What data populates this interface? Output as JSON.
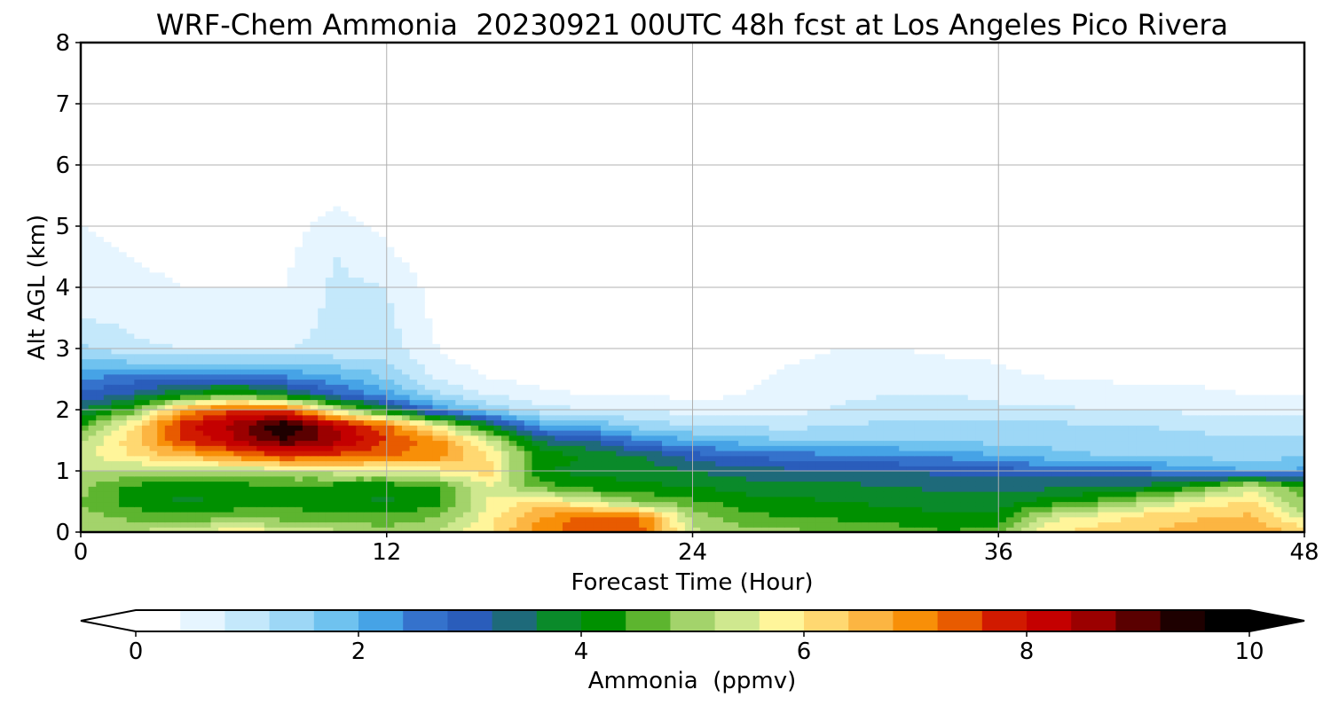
{
  "chart_data": {
    "type": "heatmap",
    "title": "WRF-Chem Ammonia  20230921 00UTC 48h fcst at Los Angeles Pico Rivera",
    "xlabel": "Forecast Time (Hour)",
    "ylabel": "Alt AGL (km)",
    "xlim": [
      0,
      48
    ],
    "ylim": [
      0,
      8
    ],
    "xticks": [
      0,
      12,
      24,
      36,
      48
    ],
    "yticks": [
      0,
      1,
      2,
      3,
      4,
      5,
      6,
      7,
      8
    ],
    "grid": true,
    "colorbar": {
      "label": "Ammonia  (ppmv)",
      "range": [
        0,
        10
      ],
      "ticks": [
        0,
        2,
        4,
        6,
        8,
        10
      ],
      "extend": "both",
      "orientation": "horizontal",
      "placement": "bottom",
      "colors": [
        "#ffffff",
        "#e6f5ff",
        "#c4e8fb",
        "#9dd7f6",
        "#6fc2ef",
        "#46a3e6",
        "#3572cc",
        "#2a5dbb",
        "#1e6a7a",
        "#0a8a2a",
        "#009000",
        "#5db52f",
        "#a3d36b",
        "#cfe88f",
        "#fff59a",
        "#ffd871",
        "#fcb542",
        "#f88f08",
        "#e85b00",
        "#d11a00",
        "#c40000",
        "#9b0000",
        "#5a0000",
        "#1e0000",
        "#000000"
      ]
    },
    "x_hours": [
      0,
      2,
      4,
      6,
      8,
      10,
      12,
      14,
      16,
      18,
      20,
      22,
      24,
      26,
      28,
      30,
      32,
      34,
      36,
      38,
      40,
      42,
      44,
      46,
      48
    ],
    "y_km": [
      0,
      0.25,
      0.5,
      0.75,
      1,
      1.25,
      1.5,
      1.75,
      2,
      2.25,
      2.5,
      2.75,
      3,
      3.5,
      4,
      4.5,
      5,
      5.5,
      6,
      6.5,
      7,
      7.5,
      8
    ],
    "z_ppmv": [
      [
        5.0,
        5.2,
        5.6,
        5.9,
        5.7,
        5.3,
        5.0,
        5.2,
        6.0,
        7.0,
        7.6,
        7.3,
        5.3,
        5.0,
        4.9,
        4.8,
        4.6,
        4.4,
        4.6,
        6.0,
        6.2,
        6.4,
        6.6,
        6.8,
        6.3
      ],
      [
        5.0,
        4.7,
        4.5,
        4.7,
        4.6,
        4.5,
        4.5,
        4.8,
        5.8,
        6.8,
        7.4,
        7.2,
        5.0,
        4.5,
        4.4,
        4.3,
        4.2,
        4.1,
        4.2,
        5.4,
        5.8,
        6.2,
        6.4,
        6.5,
        5.4
      ],
      [
        4.8,
        4.2,
        3.9,
        4.1,
        4.3,
        4.1,
        3.9,
        4.2,
        5.6,
        6.2,
        5.5,
        4.8,
        4.5,
        4.2,
        4.1,
        4.0,
        3.9,
        3.8,
        3.8,
        4.2,
        4.6,
        5.2,
        5.8,
        6.0,
        4.8
      ],
      [
        4.9,
        4.3,
        4.1,
        4.2,
        4.3,
        4.2,
        4.1,
        4.4,
        5.6,
        4.6,
        4.2,
        4.1,
        4.0,
        3.8,
        3.7,
        3.7,
        3.6,
        3.5,
        3.4,
        3.5,
        3.6,
        3.8,
        4.5,
        5.5,
        4.3
      ],
      [
        5.2,
        5.1,
        5.0,
        5.2,
        5.3,
        5.4,
        5.5,
        5.8,
        6.2,
        4.0,
        3.9,
        3.8,
        3.6,
        3.4,
        3.3,
        3.3,
        3.2,
        3.1,
        3.0,
        2.9,
        2.8,
        2.6,
        2.3,
        2.0,
        2.1
      ],
      [
        5.5,
        6.0,
        6.5,
        7.0,
        7.6,
        7.5,
        7.2,
        7.0,
        6.0,
        4.3,
        3.9,
        3.6,
        3.0,
        2.8,
        2.6,
        2.5,
        2.4,
        2.3,
        2.0,
        1.8,
        1.6,
        1.5,
        1.5,
        1.4,
        1.6
      ],
      [
        5.2,
        6.2,
        7.6,
        8.3,
        9.2,
        8.5,
        7.6,
        7.0,
        5.5,
        3.5,
        3.2,
        2.4,
        2.0,
        1.8,
        1.6,
        1.6,
        1.6,
        1.5,
        1.5,
        1.4,
        1.4,
        1.3,
        1.3,
        1.3,
        1.3
      ],
      [
        4.4,
        6.0,
        7.8,
        8.6,
        9.6,
        8.4,
        7.3,
        5.6,
        3.8,
        2.2,
        1.9,
        1.4,
        1.2,
        1.1,
        1.1,
        1.2,
        1.3,
        1.3,
        1.4,
        1.3,
        1.2,
        1.2,
        1.1,
        1.0,
        1.1
      ],
      [
        3.6,
        4.5,
        6.8,
        7.6,
        7.6,
        5.5,
        3.8,
        2.4,
        1.5,
        1.0,
        0.8,
        0.8,
        0.6,
        0.6,
        0.7,
        0.9,
        1.0,
        1.0,
        0.9,
        0.9,
        0.8,
        0.8,
        0.7,
        0.6,
        0.6
      ],
      [
        2.9,
        3.3,
        4.0,
        4.6,
        3.9,
        2.9,
        2.2,
        1.3,
        0.8,
        0.5,
        0.4,
        0.4,
        0.3,
        0.4,
        0.6,
        0.7,
        0.8,
        0.8,
        0.7,
        0.6,
        0.5,
        0.5,
        0.5,
        0.4,
        0.4
      ],
      [
        2.4,
        2.7,
        2.9,
        2.9,
        2.6,
        2.2,
        1.6,
        0.8,
        0.4,
        0.3,
        0.2,
        0.2,
        0.2,
        0.3,
        0.5,
        0.7,
        0.7,
        0.6,
        0.5,
        0.4,
        0.4,
        0.3,
        0.3,
        0.2,
        0.2
      ],
      [
        1.9,
        1.7,
        1.6,
        1.6,
        1.6,
        1.5,
        1.3,
        0.5,
        0.3,
        0.2,
        0.2,
        0.2,
        0.2,
        0.3,
        0.4,
        0.6,
        0.6,
        0.5,
        0.4,
        0.3,
        0.3,
        0.2,
        0.2,
        0.2,
        0.2
      ],
      [
        1.3,
        0.9,
        0.8,
        0.8,
        0.8,
        0.9,
        1.0,
        0.4,
        0.2,
        0.2,
        0.1,
        0.1,
        0.1,
        0.2,
        0.3,
        0.4,
        0.4,
        0.3,
        0.3,
        0.2,
        0.2,
        0.1,
        0.1,
        0.1,
        0.1
      ],
      [
        0.8,
        0.7,
        0.5,
        0.5,
        0.6,
        0.9,
        0.9,
        0.3,
        0.2,
        0.1,
        0.1,
        0.1,
        0.1,
        0.1,
        0.1,
        0.2,
        0.2,
        0.1,
        0.1,
        0.1,
        0.1,
        0.1,
        0.1,
        0.1,
        0.1
      ],
      [
        0.6,
        0.5,
        0.4,
        0.4,
        0.4,
        0.9,
        0.8,
        0.2,
        0.1,
        0.1,
        0.1,
        0.1,
        0.1,
        0.1,
        0.1,
        0.1,
        0.1,
        0.1,
        0.1,
        0.1,
        0.1,
        0.1,
        0.1,
        0.1,
        0.1
      ],
      [
        0.5,
        0.4,
        0.3,
        0.2,
        0.3,
        0.8,
        0.5,
        0.1,
        0.1,
        0.1,
        0.1,
        0.1,
        0.1,
        0.1,
        0.1,
        0.1,
        0.1,
        0.1,
        0.1,
        0.1,
        0.1,
        0.1,
        0.1,
        0.1,
        0.1
      ],
      [
        0.4,
        0.3,
        0.2,
        0.2,
        0.2,
        0.6,
        0.3,
        0.1,
        0.1,
        0.1,
        0.1,
        0.1,
        0.1,
        0.1,
        0.1,
        0.1,
        0.1,
        0.1,
        0.1,
        0.1,
        0.1,
        0.1,
        0.1,
        0.1,
        0.1
      ],
      [
        0.3,
        0.2,
        0.1,
        0.1,
        0.1,
        0.3,
        0.1,
        0.1,
        0.1,
        0.1,
        0.1,
        0.1,
        0.1,
        0.1,
        0.1,
        0.1,
        0.1,
        0.1,
        0.1,
        0.1,
        0.1,
        0.1,
        0.1,
        0.1,
        0.1
      ],
      [
        0.2,
        0.1,
        0.1,
        0.1,
        0.1,
        0.1,
        0.1,
        0.1,
        0.1,
        0.1,
        0.1,
        0.1,
        0.1,
        0.1,
        0.1,
        0.1,
        0.1,
        0.1,
        0.1,
        0.1,
        0.1,
        0.1,
        0.1,
        0.1,
        0.1
      ],
      [
        0.1,
        0.1,
        0.1,
        0.1,
        0.1,
        0.1,
        0.1,
        0.1,
        0.1,
        0.1,
        0.1,
        0.1,
        0.1,
        0.1,
        0.1,
        0.1,
        0.1,
        0.1,
        0.1,
        0.1,
        0.1,
        0.1,
        0.1,
        0.1,
        0.1
      ],
      [
        0.1,
        0.1,
        0.1,
        0.1,
        0.1,
        0.1,
        0.1,
        0.1,
        0.1,
        0.1,
        0.1,
        0.1,
        0.1,
        0.1,
        0.1,
        0.1,
        0.1,
        0.1,
        0.1,
        0.1,
        0.1,
        0.1,
        0.1,
        0.1,
        0.1
      ],
      [
        0.1,
        0.1,
        0.1,
        0.1,
        0.1,
        0.1,
        0.1,
        0.1,
        0.1,
        0.1,
        0.1,
        0.1,
        0.1,
        0.1,
        0.1,
        0.1,
        0.1,
        0.1,
        0.1,
        0.1,
        0.1,
        0.1,
        0.1,
        0.1,
        0.1
      ],
      [
        0.1,
        0.1,
        0.1,
        0.1,
        0.1,
        0.1,
        0.1,
        0.1,
        0.1,
        0.1,
        0.1,
        0.1,
        0.1,
        0.1,
        0.1,
        0.1,
        0.1,
        0.1,
        0.1,
        0.1,
        0.1,
        0.1,
        0.1,
        0.1,
        0.1
      ]
    ]
  }
}
